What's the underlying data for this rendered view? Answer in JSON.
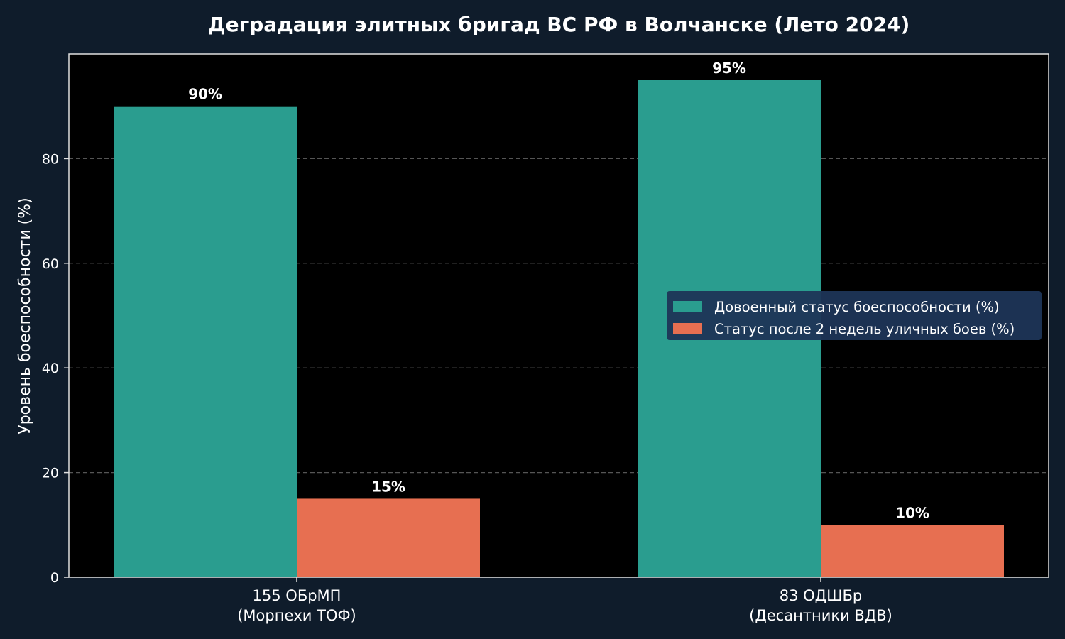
{
  "chart_data": {
    "type": "bar",
    "title": "Деградация элитных бригад ВС РФ в Волчанске (Лето 2024)",
    "xlabel": "",
    "ylabel": "Уровень боеспособности (%)",
    "ylim": [
      0,
      100
    ],
    "yticks": [
      0,
      20,
      40,
      60,
      80
    ],
    "grid": "horizontal-dashed",
    "legend_position": "center-right",
    "categories": [
      [
        "155 ОБрМП",
        "(Морпехи ТОФ)"
      ],
      [
        "83 ОДШБр",
        "(Десантники ВДВ)"
      ]
    ],
    "series": [
      {
        "name": "Довоенный статус боеспособности (%)",
        "values": [
          90,
          95
        ],
        "labels": [
          "90%",
          "95%"
        ],
        "color": "#2a9d8f"
      },
      {
        "name": "Статус после 2 недель уличных боев (%)",
        "values": [
          15,
          10
        ],
        "labels": [
          "15%",
          "10%"
        ],
        "color": "#e76f51"
      }
    ],
    "colors": {
      "page_background": "#0f1c2b",
      "plot_background": "#000000",
      "axis": "#e0e0e0",
      "grid": "#555555",
      "text": "#ffffff",
      "legend_background": "#1d3557"
    }
  }
}
